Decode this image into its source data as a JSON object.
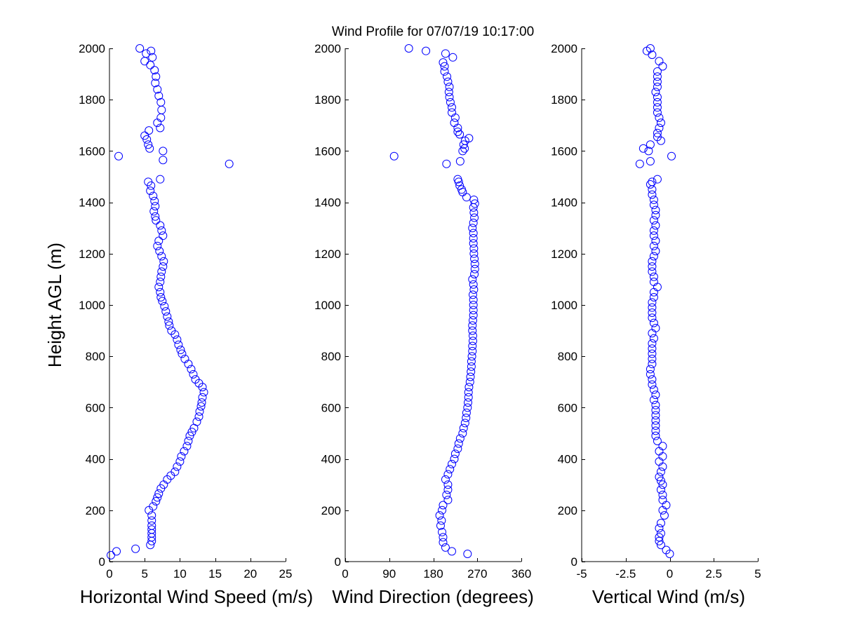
{
  "colors": {
    "marker": "#0000ff",
    "axes": "#000000",
    "background": "#ffffff"
  },
  "chart_data": [
    {
      "type": "scatter",
      "title": "Wind Profile for  07/07/19 10:17:00",
      "xlabel": "Horizontal Wind Speed (m/s)",
      "ylabel": "Height AGL (m)",
      "xlim": [
        0,
        25
      ],
      "ylim": [
        0,
        2000
      ],
      "xticks": [
        0,
        5,
        10,
        15,
        20,
        25
      ],
      "xtick_labels": [
        "0",
        "5",
        "10",
        "15",
        "20",
        "25"
      ],
      "yticks": [
        0,
        200,
        400,
        600,
        800,
        1000,
        1200,
        1400,
        1600,
        1800,
        2000
      ],
      "ytick_labels": [
        "0",
        "200",
        "400",
        "600",
        "800",
        "1000",
        "1200",
        "1400",
        "1600",
        "1800",
        "2000"
      ],
      "points": [
        [
          0.2,
          25
        ],
        [
          1,
          40
        ],
        [
          3.7,
          50
        ],
        [
          5.8,
          65
        ],
        [
          6,
          80
        ],
        [
          6,
          95
        ],
        [
          6,
          110
        ],
        [
          6,
          125
        ],
        [
          6,
          140
        ],
        [
          6,
          160
        ],
        [
          6,
          180
        ],
        [
          5.6,
          200
        ],
        [
          6.2,
          215
        ],
        [
          6.6,
          235
        ],
        [
          6.8,
          250
        ],
        [
          7,
          265
        ],
        [
          7.3,
          285
        ],
        [
          7.7,
          300
        ],
        [
          8.2,
          320
        ],
        [
          8.7,
          335
        ],
        [
          9.3,
          350
        ],
        [
          9.6,
          370
        ],
        [
          10,
          390
        ],
        [
          10.2,
          410
        ],
        [
          10.6,
          430
        ],
        [
          11,
          450
        ],
        [
          11.2,
          470
        ],
        [
          11.4,
          490
        ],
        [
          11.7,
          505
        ],
        [
          12,
          520
        ],
        [
          12.4,
          545
        ],
        [
          12.7,
          565
        ],
        [
          12.8,
          585
        ],
        [
          13,
          605
        ],
        [
          13.1,
          620
        ],
        [
          13.2,
          640
        ],
        [
          13.4,
          660
        ],
        [
          13.2,
          680
        ],
        [
          12.7,
          695
        ],
        [
          12.2,
          710
        ],
        [
          11.9,
          730
        ],
        [
          11.6,
          750
        ],
        [
          11.2,
          770
        ],
        [
          10.7,
          790
        ],
        [
          10.3,
          810
        ],
        [
          10.1,
          825
        ],
        [
          9.8,
          845
        ],
        [
          9.6,
          865
        ],
        [
          9.3,
          885
        ],
        [
          8.8,
          900
        ],
        [
          8.5,
          920
        ],
        [
          8.4,
          935
        ],
        [
          8.2,
          955
        ],
        [
          8,
          975
        ],
        [
          7.8,
          995
        ],
        [
          7.5,
          1015
        ],
        [
          7.3,
          1030
        ],
        [
          7.2,
          1050
        ],
        [
          7,
          1070
        ],
        [
          7.2,
          1090
        ],
        [
          7.3,
          1110
        ],
        [
          7.4,
          1130
        ],
        [
          7.6,
          1150
        ],
        [
          7.7,
          1170
        ],
        [
          7.4,
          1190
        ],
        [
          7.1,
          1210
        ],
        [
          6.8,
          1230
        ],
        [
          7,
          1250
        ],
        [
          7.6,
          1270
        ],
        [
          7.4,
          1290
        ],
        [
          7.2,
          1310
        ],
        [
          6.6,
          1330
        ],
        [
          6.5,
          1345
        ],
        [
          6.3,
          1365
        ],
        [
          6.5,
          1385
        ],
        [
          6.4,
          1405
        ],
        [
          6.2,
          1425
        ],
        [
          5.8,
          1445
        ],
        [
          5.9,
          1465
        ],
        [
          5.5,
          1480
        ],
        [
          7.2,
          1490
        ],
        [
          17,
          1550
        ],
        [
          7.6,
          1565
        ],
        [
          1.3,
          1580
        ],
        [
          7.6,
          1600
        ],
        [
          5.7,
          1610
        ],
        [
          5.5,
          1625
        ],
        [
          5.3,
          1645
        ],
        [
          5,
          1660
        ],
        [
          5.6,
          1680
        ],
        [
          7.2,
          1690
        ],
        [
          6.8,
          1710
        ],
        [
          7.3,
          1730
        ],
        [
          7.4,
          1760
        ],
        [
          7.3,
          1790
        ],
        [
          7,
          1815
        ],
        [
          6.8,
          1840
        ],
        [
          6.5,
          1865
        ],
        [
          6.6,
          1890
        ],
        [
          6.4,
          1915
        ],
        [
          5.8,
          1935
        ],
        [
          5,
          1950
        ],
        [
          6.1,
          1965
        ],
        [
          5.2,
          1980
        ],
        [
          5.9,
          1990
        ],
        [
          4.3,
          2000
        ]
      ]
    },
    {
      "type": "scatter",
      "xlabel": "Wind Direction (degrees)",
      "xlim": [
        0,
        360
      ],
      "ylim": [
        0,
        2000
      ],
      "xticks": [
        0,
        90,
        180,
        270,
        360
      ],
      "xtick_labels": [
        "0",
        "90",
        "180",
        "270",
        "360"
      ],
      "yticks": [
        0,
        200,
        400,
        600,
        800,
        1000,
        1200,
        1400,
        1600,
        1800,
        2000
      ],
      "ytick_labels": [
        "0",
        "200",
        "400",
        "600",
        "800",
        "1000",
        "1200",
        "1400",
        "1600",
        "1800",
        "2000"
      ],
      "points": [
        [
          250,
          30
        ],
        [
          218,
          40
        ],
        [
          205,
          55
        ],
        [
          200,
          75
        ],
        [
          200,
          95
        ],
        [
          198,
          115
        ],
        [
          195,
          140
        ],
        [
          197,
          160
        ],
        [
          193,
          180
        ],
        [
          198,
          200
        ],
        [
          200,
          220
        ],
        [
          210,
          240
        ],
        [
          207,
          260
        ],
        [
          210,
          280
        ],
        [
          210,
          300
        ],
        [
          205,
          320
        ],
        [
          210,
          340
        ],
        [
          214,
          360
        ],
        [
          218,
          380
        ],
        [
          223,
          400
        ],
        [
          225,
          420
        ],
        [
          230,
          440
        ],
        [
          232,
          460
        ],
        [
          235,
          480
        ],
        [
          240,
          500
        ],
        [
          242,
          520
        ],
        [
          245,
          540
        ],
        [
          247,
          560
        ],
        [
          248,
          580
        ],
        [
          250,
          600
        ],
        [
          251,
          620
        ],
        [
          252,
          640
        ],
        [
          252,
          660
        ],
        [
          253,
          680
        ],
        [
          255,
          700
        ],
        [
          256,
          720
        ],
        [
          257,
          740
        ],
        [
          258,
          760
        ],
        [
          258,
          780
        ],
        [
          259,
          800
        ],
        [
          260,
          820
        ],
        [
          260,
          840
        ],
        [
          261,
          860
        ],
        [
          261,
          880
        ],
        [
          260,
          900
        ],
        [
          260,
          920
        ],
        [
          261,
          940
        ],
        [
          262,
          960
        ],
        [
          262,
          980
        ],
        [
          262,
          1000
        ],
        [
          262,
          1020
        ],
        [
          261,
          1040
        ],
        [
          263,
          1060
        ],
        [
          262,
          1080
        ],
        [
          260,
          1100
        ],
        [
          264,
          1120
        ],
        [
          265,
          1140
        ],
        [
          265,
          1160
        ],
        [
          264,
          1180
        ],
        [
          263,
          1200
        ],
        [
          263,
          1220
        ],
        [
          262,
          1240
        ],
        [
          262,
          1260
        ],
        [
          262,
          1280
        ],
        [
          260,
          1300
        ],
        [
          262,
          1320
        ],
        [
          264,
          1340
        ],
        [
          263,
          1360
        ],
        [
          262,
          1380
        ],
        [
          265,
          1395
        ],
        [
          263,
          1410
        ],
        [
          248,
          1420
        ],
        [
          240,
          1440
        ],
        [
          238,
          1450
        ],
        [
          234,
          1465
        ],
        [
          232,
          1480
        ],
        [
          230,
          1490
        ],
        [
          207,
          1550
        ],
        [
          235,
          1560
        ],
        [
          100,
          1580
        ],
        [
          240,
          1600
        ],
        [
          244,
          1610
        ],
        [
          242,
          1625
        ],
        [
          245,
          1640
        ],
        [
          253,
          1650
        ],
        [
          234,
          1665
        ],
        [
          230,
          1675
        ],
        [
          230,
          1690
        ],
        [
          223,
          1710
        ],
        [
          225,
          1730
        ],
        [
          218,
          1750
        ],
        [
          218,
          1770
        ],
        [
          215,
          1790
        ],
        [
          213,
          1810
        ],
        [
          212,
          1830
        ],
        [
          213,
          1850
        ],
        [
          210,
          1870
        ],
        [
          208,
          1890
        ],
        [
          203,
          1910
        ],
        [
          203,
          1930
        ],
        [
          200,
          1945
        ],
        [
          220,
          1965
        ],
        [
          205,
          1980
        ],
        [
          165,
          1990
        ],
        [
          130,
          2000
        ]
      ]
    },
    {
      "type": "scatter",
      "xlabel": "Vertical Wind (m/s)",
      "xlim": [
        -5,
        5
      ],
      "ylim": [
        0,
        2000
      ],
      "xticks": [
        -5,
        -2.5,
        0,
        2.5,
        5
      ],
      "xtick_labels": [
        "-5",
        "-2.5",
        "0",
        "2.5",
        "5"
      ],
      "yticks": [
        0,
        200,
        400,
        600,
        800,
        1000,
        1200,
        1400,
        1600,
        1800,
        2000
      ],
      "ytick_labels": [
        "0",
        "200",
        "400",
        "600",
        "800",
        "1000",
        "1200",
        "1400",
        "1600",
        "1800",
        "2000"
      ],
      "points": [
        [
          0,
          30
        ],
        [
          -0.2,
          45
        ],
        [
          -0.5,
          65
        ],
        [
          -0.6,
          80
        ],
        [
          -0.6,
          95
        ],
        [
          -0.5,
          110
        ],
        [
          -0.6,
          130
        ],
        [
          -0.5,
          150
        ],
        [
          -0.3,
          180
        ],
        [
          -0.4,
          200
        ],
        [
          -0.2,
          220
        ],
        [
          -0.4,
          240
        ],
        [
          -0.4,
          260
        ],
        [
          -0.5,
          280
        ],
        [
          -0.4,
          300
        ],
        [
          -0.5,
          315
        ],
        [
          -0.6,
          330
        ],
        [
          -0.5,
          350
        ],
        [
          -0.4,
          370
        ],
        [
          -0.6,
          390
        ],
        [
          -0.4,
          410
        ],
        [
          -0.6,
          430
        ],
        [
          -0.4,
          450
        ],
        [
          -0.7,
          470
        ],
        [
          -0.8,
          490
        ],
        [
          -0.8,
          510
        ],
        [
          -0.8,
          530
        ],
        [
          -0.8,
          550
        ],
        [
          -0.8,
          570
        ],
        [
          -0.8,
          590
        ],
        [
          -0.8,
          610
        ],
        [
          -0.9,
          630
        ],
        [
          -0.8,
          650
        ],
        [
          -0.9,
          670
        ],
        [
          -1,
          690
        ],
        [
          -1,
          710
        ],
        [
          -1.1,
          730
        ],
        [
          -1.1,
          750
        ],
        [
          -1,
          770
        ],
        [
          -1,
          790
        ],
        [
          -1,
          810
        ],
        [
          -1,
          830
        ],
        [
          -1,
          850
        ],
        [
          -0.9,
          870
        ],
        [
          -1,
          890
        ],
        [
          -0.8,
          910
        ],
        [
          -0.9,
          930
        ],
        [
          -1,
          950
        ],
        [
          -1,
          970
        ],
        [
          -1,
          990
        ],
        [
          -1,
          1010
        ],
        [
          -0.9,
          1030
        ],
        [
          -0.9,
          1050
        ],
        [
          -0.7,
          1070
        ],
        [
          -0.9,
          1090
        ],
        [
          -0.9,
          1110
        ],
        [
          -1,
          1130
        ],
        [
          -1,
          1150
        ],
        [
          -1,
          1170
        ],
        [
          -0.9,
          1190
        ],
        [
          -0.8,
          1210
        ],
        [
          -0.9,
          1230
        ],
        [
          -0.8,
          1250
        ],
        [
          -0.9,
          1270
        ],
        [
          -0.9,
          1290
        ],
        [
          -0.8,
          1310
        ],
        [
          -0.9,
          1330
        ],
        [
          -0.8,
          1350
        ],
        [
          -0.8,
          1370
        ],
        [
          -0.9,
          1390
        ],
        [
          -0.9,
          1410
        ],
        [
          -1,
          1430
        ],
        [
          -1,
          1450
        ],
        [
          -1.1,
          1470
        ],
        [
          -1,
          1480
        ],
        [
          -0.7,
          1490
        ],
        [
          -1.7,
          1550
        ],
        [
          -1.1,
          1560
        ],
        [
          0.1,
          1580
        ],
        [
          -1.2,
          1600
        ],
        [
          -1.5,
          1610
        ],
        [
          -1.1,
          1625
        ],
        [
          -0.5,
          1640
        ],
        [
          -0.7,
          1655
        ],
        [
          -0.7,
          1670
        ],
        [
          -0.6,
          1690
        ],
        [
          -0.5,
          1710
        ],
        [
          -0.6,
          1730
        ],
        [
          -0.7,
          1750
        ],
        [
          -0.7,
          1770
        ],
        [
          -0.7,
          1790
        ],
        [
          -0.7,
          1810
        ],
        [
          -0.8,
          1830
        ],
        [
          -0.7,
          1850
        ],
        [
          -0.7,
          1870
        ],
        [
          -0.7,
          1890
        ],
        [
          -0.7,
          1910
        ],
        [
          -0.4,
          1930
        ],
        [
          -0.6,
          1950
        ],
        [
          -1,
          1975
        ],
        [
          -1.3,
          1990
        ],
        [
          -1.1,
          2000
        ]
      ]
    }
  ]
}
